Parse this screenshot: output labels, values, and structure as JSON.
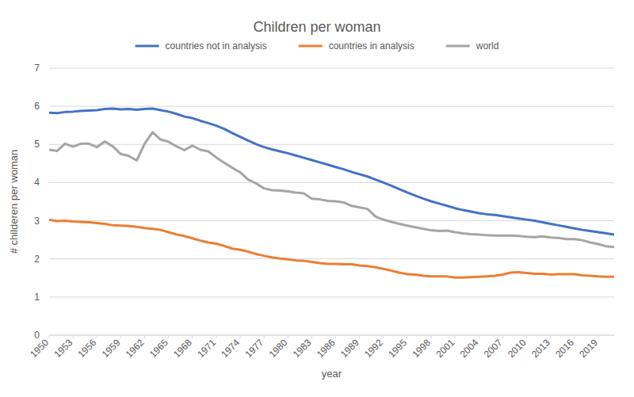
{
  "chart_data": {
    "type": "line",
    "title": "Children per woman",
    "x_label": "year",
    "y_label": "# childeren per woman",
    "x": [
      1950,
      1951,
      1952,
      1953,
      1954,
      1955,
      1956,
      1957,
      1958,
      1959,
      1960,
      1961,
      1962,
      1963,
      1964,
      1965,
      1966,
      1967,
      1968,
      1969,
      1970,
      1971,
      1972,
      1973,
      1974,
      1975,
      1976,
      1977,
      1978,
      1979,
      1980,
      1981,
      1982,
      1983,
      1984,
      1985,
      1986,
      1987,
      1988,
      1989,
      1990,
      1991,
      1992,
      1993,
      1994,
      1995,
      1996,
      1997,
      1998,
      1999,
      2000,
      2001,
      2002,
      2003,
      2004,
      2005,
      2006,
      2007,
      2008,
      2009,
      2010,
      2011,
      2012,
      2013,
      2014,
      2015,
      2016,
      2017,
      2018,
      2019,
      2020,
      2021
    ],
    "series": [
      {
        "name": "countries not in analysis",
        "color": "#4472c4",
        "values": [
          5.83,
          5.82,
          5.85,
          5.86,
          5.88,
          5.89,
          5.9,
          5.93,
          5.94,
          5.92,
          5.93,
          5.91,
          5.93,
          5.94,
          5.9,
          5.86,
          5.8,
          5.73,
          5.69,
          5.62,
          5.56,
          5.49,
          5.41,
          5.3,
          5.2,
          5.1,
          5.01,
          4.93,
          4.87,
          4.82,
          4.77,
          4.71,
          4.65,
          4.59,
          4.53,
          4.47,
          4.41,
          4.35,
          4.28,
          4.22,
          4.16,
          4.08,
          4.0,
          3.92,
          3.83,
          3.74,
          3.66,
          3.58,
          3.51,
          3.45,
          3.39,
          3.33,
          3.28,
          3.24,
          3.2,
          3.17,
          3.15,
          3.12,
          3.09,
          3.06,
          3.03,
          3.0,
          2.96,
          2.92,
          2.88,
          2.84,
          2.8,
          2.76,
          2.73,
          2.7,
          2.67,
          2.64
        ]
      },
      {
        "name": "countries in analysis",
        "color": "#ed7d31",
        "values": [
          3.03,
          2.99,
          3.0,
          2.98,
          2.97,
          2.96,
          2.94,
          2.92,
          2.88,
          2.87,
          2.86,
          2.84,
          2.81,
          2.79,
          2.76,
          2.7,
          2.64,
          2.6,
          2.54,
          2.48,
          2.43,
          2.4,
          2.34,
          2.27,
          2.24,
          2.19,
          2.13,
          2.08,
          2.04,
          2.01,
          1.99,
          1.96,
          1.95,
          1.92,
          1.89,
          1.87,
          1.87,
          1.86,
          1.86,
          1.83,
          1.81,
          1.78,
          1.74,
          1.69,
          1.64,
          1.6,
          1.59,
          1.56,
          1.54,
          1.54,
          1.54,
          1.51,
          1.51,
          1.52,
          1.53,
          1.54,
          1.56,
          1.59,
          1.64,
          1.65,
          1.63,
          1.61,
          1.61,
          1.59,
          1.6,
          1.6,
          1.6,
          1.57,
          1.56,
          1.54,
          1.53,
          1.53
        ]
      },
      {
        "name": "world",
        "color": "#a5a5a5",
        "values": [
          4.86,
          4.83,
          5.02,
          4.94,
          5.02,
          5.02,
          4.93,
          5.08,
          4.95,
          4.75,
          4.7,
          4.58,
          5.02,
          5.32,
          5.13,
          5.07,
          4.95,
          4.85,
          4.97,
          4.86,
          4.82,
          4.66,
          4.52,
          4.39,
          4.27,
          4.08,
          3.98,
          3.85,
          3.8,
          3.79,
          3.77,
          3.74,
          3.72,
          3.58,
          3.56,
          3.52,
          3.51,
          3.48,
          3.39,
          3.35,
          3.31,
          3.11,
          3.03,
          2.97,
          2.92,
          2.87,
          2.83,
          2.79,
          2.75,
          2.73,
          2.74,
          2.7,
          2.67,
          2.65,
          2.64,
          2.62,
          2.61,
          2.61,
          2.61,
          2.6,
          2.58,
          2.57,
          2.59,
          2.56,
          2.55,
          2.52,
          2.52,
          2.49,
          2.43,
          2.39,
          2.33,
          2.31
        ]
      }
    ],
    "xlim": [
      1950,
      2021
    ],
    "xticks": [
      1950,
      1953,
      1956,
      1959,
      1962,
      1965,
      1968,
      1971,
      1974,
      1977,
      1980,
      1983,
      1986,
      1989,
      1992,
      1995,
      1998,
      2001,
      2004,
      2007,
      2010,
      2013,
      2016,
      2019
    ],
    "ylim": [
      0,
      7
    ],
    "yticks": [
      0,
      1,
      2,
      3,
      4,
      5,
      6,
      7
    ],
    "grid": true,
    "legend": "top"
  }
}
